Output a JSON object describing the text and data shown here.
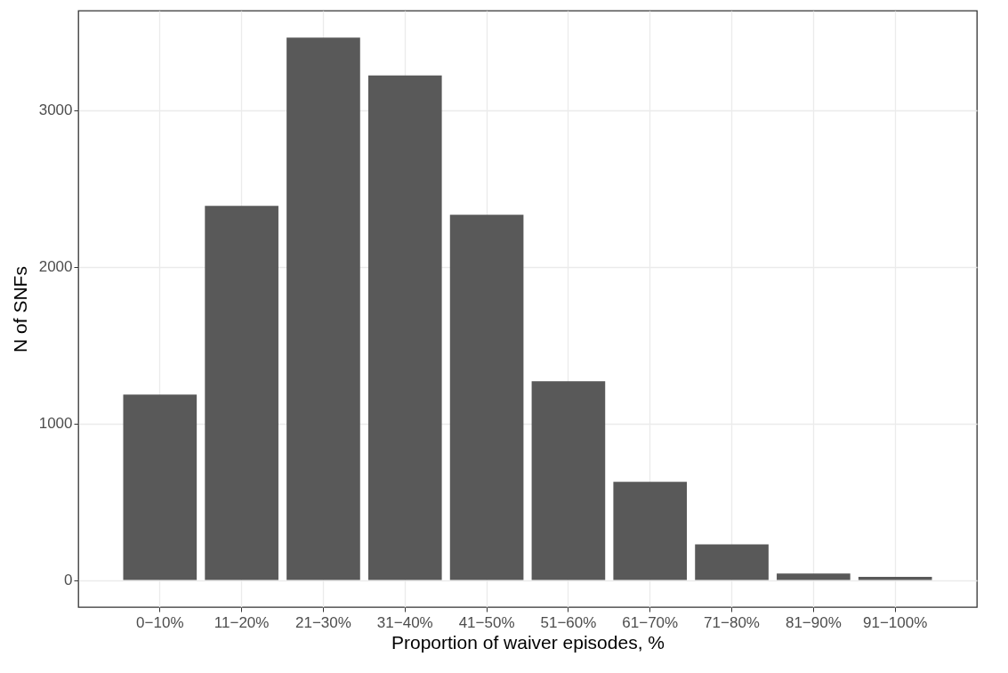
{
  "chart_data": {
    "type": "bar",
    "xlabel": "Proportion of waiver episodes, %",
    "ylabel": "N of SNFs",
    "categories": [
      "0−10%",
      "11−20%",
      "21−30%",
      "31−40%",
      "41−50%",
      "51−60%",
      "61−70%",
      "71−80%",
      "81−90%",
      "91−100%"
    ],
    "values": [
      1183,
      2388,
      3462,
      3221,
      2332,
      1269,
      627,
      228,
      41,
      20
    ],
    "color": "#595959",
    "ylim": [
      -173,
      3634
    ],
    "yticks": [
      0,
      1000,
      2000,
      3000
    ],
    "grid": true
  }
}
